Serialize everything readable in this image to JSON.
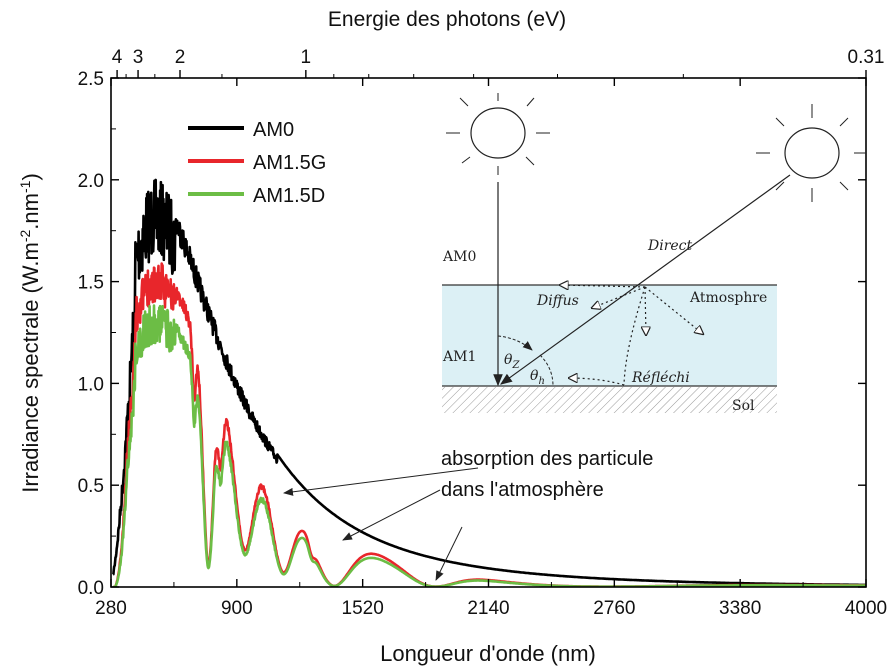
{
  "chart_data": {
    "type": "line",
    "title": "",
    "xlabel": "Longueur d'onde (nm)",
    "ylabel": "Irradiance spectrale (W.m",
    "ylabel_sup1": "-2",
    "ylabel_mid": ".nm",
    "ylabel_sup2": "-1",
    "ylabel_end": ")",
    "top_xlabel": "Energie des photons (eV)",
    "xlim": [
      280,
      4000
    ],
    "ylim": [
      0,
      2.5
    ],
    "xticks": [
      "280",
      "900",
      "1520",
      "2140",
      "2760",
      "3380",
      "4000"
    ],
    "yticks": [
      "0.0",
      "0.5",
      "1.0",
      "1.5",
      "2.0",
      "2.5"
    ],
    "top_ticks": [
      {
        "label": "4",
        "ev": 4
      },
      {
        "label": "3",
        "ev": 3
      },
      {
        "label": "2",
        "ev": 2
      },
      {
        "label": "1",
        "ev": 1
      },
      {
        "label": "0.31",
        "ev": 0.31
      }
    ],
    "legend_position": "top-left",
    "series": [
      {
        "name": "AM0",
        "color": "#000000"
      },
      {
        "name": "AM1.5G",
        "color": "#e8262b"
      },
      {
        "name": "AM1.5D",
        "color": "#6cbd45"
      }
    ],
    "annotation": {
      "line1": "absorption des particule",
      "line2": "dans l'atmosphère",
      "targets": [
        [
          1060,
          0.45
        ],
        [
          1340,
          0.22
        ],
        [
          1810,
          0.02
        ]
      ]
    }
  },
  "inset": {
    "am0_label": "AM0",
    "am1_label": "AM1",
    "direct_label": "Direct",
    "diffus_label": "Diffus",
    "atmosphere_label": "Atmosphre",
    "reflechi_label": "Réfléchi",
    "sol_label": "Sol",
    "theta_z": "θ",
    "theta_z_sub": "Z",
    "theta_h": "θ",
    "theta_h_sub": "h",
    "atmosphere_color": "#dcf0f5"
  }
}
